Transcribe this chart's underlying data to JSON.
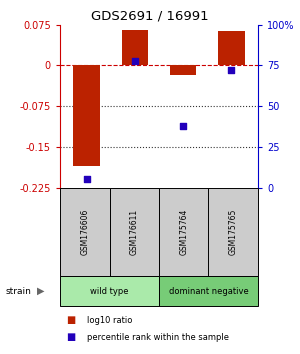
{
  "title": "GDS2691 / 16991",
  "samples": [
    "GSM176606",
    "GSM176611",
    "GSM175764",
    "GSM175765"
  ],
  "log10_ratio": [
    -0.185,
    0.065,
    -0.018,
    0.063
  ],
  "percentile_rank": [
    5,
    78,
    38,
    72
  ],
  "ylim_left": [
    -0.225,
    0.075
  ],
  "ylim_right": [
    0,
    100
  ],
  "yticks_left": [
    0.075,
    0,
    -0.075,
    -0.15,
    -0.225
  ],
  "yticks_right": [
    100,
    75,
    50,
    25,
    0
  ],
  "groups": [
    {
      "label": "wild type",
      "samples_idx": [
        0,
        1
      ],
      "color": "#aaeaaa"
    },
    {
      "label": "dominant negative",
      "samples_idx": [
        2,
        3
      ],
      "color": "#77cc77"
    }
  ],
  "bar_color": "#bb2200",
  "dot_color": "#2200bb",
  "bar_width": 0.55,
  "hlines": [
    0,
    -0.075,
    -0.15
  ],
  "hline_styles": [
    "--",
    ":",
    ":"
  ],
  "hline_colors": [
    "#cc0000",
    "#333333",
    "#333333"
  ],
  "left_axis_color": "#cc0000",
  "right_axis_color": "#0000cc",
  "background_color": "#ffffff",
  "sample_box_color": "#cccccc",
  "strain_label": "strain",
  "legend_items": [
    {
      "color": "#bb2200",
      "label": "log10 ratio"
    },
    {
      "color": "#2200bb",
      "label": "percentile rank within the sample"
    }
  ]
}
